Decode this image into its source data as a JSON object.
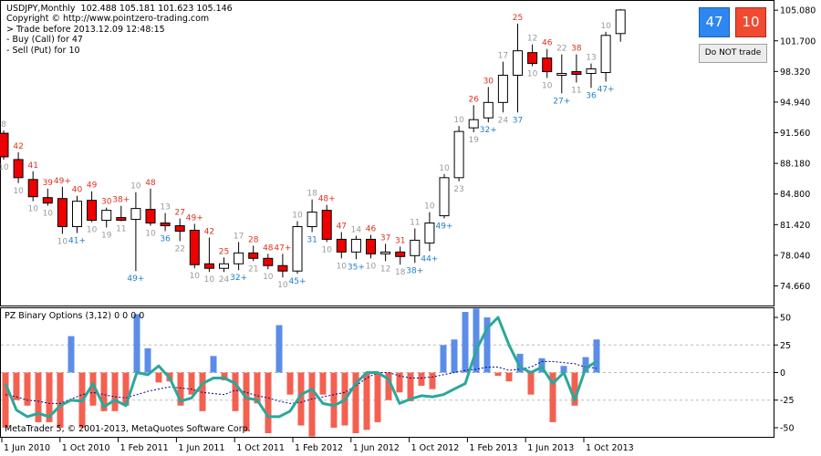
{
  "header": {
    "lines": [
      "USDJPY,Monthly  102.488 105.181 101.623 105.146",
      "Copyright © http://www.pointzero-trading.com",
      "> Trade before 2013.12.09 12:48:15",
      "- Buy (Call) for 47",
      "- Sell (Put) for 10"
    ]
  },
  "panel": {
    "call_count": "47",
    "put_count": "10",
    "trade_button": "Do NOT trade"
  },
  "indicator": {
    "title": "PZ Binary Options (3,12) 0 0 0 0"
  },
  "footer": {
    "text": "MetaTrader 5, © 2001-2013, MetaQuotes Software Corp."
  },
  "colors": {
    "bull_body": "#ffffff",
    "bear_body": "#ee0000",
    "call_label": "#1e7fc8",
    "put_label": "#e0301e",
    "neutral_label": "#9a9a9a",
    "hist_up": "#5b8de8",
    "hist_down": "#f46050",
    "osc_line": "#2aa89a",
    "signal_line": "#00008b"
  },
  "chart_data": [
    {
      "type": "candlestick",
      "symbol": "USDJPY",
      "timeframe": "Monthly",
      "ylim": [
        73.0,
        105.8
      ],
      "y_ticks": [
        "105.080",
        "101.700",
        "98.320",
        "94.940",
        "91.560",
        "88.180",
        "84.800",
        "81.420",
        "78.040",
        "74.660"
      ],
      "x_ticks": [
        "1 Jun 2010",
        "1 Oct 2010",
        "1 Feb 2011",
        "1 Jun 2011",
        "1 Oct 2011",
        "1 Feb 2012",
        "1 Jun 2012",
        "1 Oct 2012",
        "1 Feb 2013",
        "1 Jun 2013",
        "1 Oct 2013"
      ],
      "candles": [
        {
          "o": 91.5,
          "h": 91.8,
          "l": 88.6,
          "c": 88.9,
          "top": "8",
          "bottom": "10"
        },
        {
          "o": 88.6,
          "h": 89.4,
          "l": 86.0,
          "c": 86.6,
          "top": "42",
          "bottom": "10"
        },
        {
          "o": 86.4,
          "h": 87.3,
          "l": 84.0,
          "c": 84.5,
          "top": "41",
          "bottom": "10"
        },
        {
          "o": 84.4,
          "h": 85.4,
          "l": 83.5,
          "c": 83.8,
          "top": "39",
          "bottom": "10"
        },
        {
          "o": 84.3,
          "h": 85.6,
          "l": 80.4,
          "c": 81.2,
          "top": "49+",
          "bottom": "10"
        },
        {
          "o": 81.2,
          "h": 84.6,
          "l": 80.5,
          "c": 84.0,
          "top": "40",
          "bottom": "41+"
        },
        {
          "o": 84.1,
          "h": 85.1,
          "l": 81.7,
          "c": 81.9,
          "top": "49",
          "bottom": "10"
        },
        {
          "o": 81.9,
          "h": 83.3,
          "l": 81.1,
          "c": 83.0,
          "top": "30",
          "bottom": "19"
        },
        {
          "o": 82.2,
          "h": 83.5,
          "l": 81.8,
          "c": 81.9,
          "top": "38+",
          "bottom": "11"
        },
        {
          "o": 82.0,
          "h": 85.0,
          "l": 76.3,
          "c": 83.2,
          "top": "10",
          "bottom": "49+"
        },
        {
          "o": 83.1,
          "h": 85.4,
          "l": 81.3,
          "c": 81.6,
          "top": "48",
          "bottom": "10"
        },
        {
          "o": 81.6,
          "h": 82.7,
          "l": 80.7,
          "c": 81.3,
          "top": "13",
          "bottom": "36"
        },
        {
          "o": 81.3,
          "h": 82.1,
          "l": 79.6,
          "c": 80.7,
          "top": "27",
          "bottom": "22"
        },
        {
          "o": 80.8,
          "h": 81.5,
          "l": 76.6,
          "c": 77.0,
          "top": "49+",
          "bottom": "10"
        },
        {
          "o": 77.1,
          "h": 80.0,
          "l": 76.2,
          "c": 76.6,
          "top": "42",
          "bottom": "10"
        },
        {
          "o": 76.6,
          "h": 77.8,
          "l": 76.2,
          "c": 77.1,
          "top": "25",
          "bottom": "24"
        },
        {
          "o": 77.1,
          "h": 79.5,
          "l": 76.4,
          "c": 78.3,
          "top": "17",
          "bottom": "32+"
        },
        {
          "o": 78.3,
          "h": 79.1,
          "l": 77.4,
          "c": 77.7,
          "top": "28",
          "bottom": "21"
        },
        {
          "o": 77.7,
          "h": 78.2,
          "l": 76.5,
          "c": 76.9,
          "top": "48",
          "bottom": "10"
        },
        {
          "o": 76.9,
          "h": 78.2,
          "l": 75.6,
          "c": 76.3,
          "top": "47+",
          "bottom": "10"
        },
        {
          "o": 76.3,
          "h": 81.8,
          "l": 76.0,
          "c": 81.2,
          "top": "10",
          "bottom": "45+"
        },
        {
          "o": 81.2,
          "h": 84.2,
          "l": 80.6,
          "c": 82.8,
          "top": "18",
          "bottom": "31"
        },
        {
          "o": 83.0,
          "h": 83.6,
          "l": 79.5,
          "c": 79.8,
          "top": "48+",
          "bottom": "10"
        },
        {
          "o": 79.8,
          "h": 80.6,
          "l": 77.7,
          "c": 78.4,
          "top": "47",
          "bottom": "10"
        },
        {
          "o": 78.4,
          "h": 80.2,
          "l": 77.6,
          "c": 79.8,
          "top": "14",
          "bottom": "35+"
        },
        {
          "o": 79.8,
          "h": 80.3,
          "l": 77.7,
          "c": 78.2,
          "top": "46",
          "bottom": "10"
        },
        {
          "o": 78.2,
          "h": 79.3,
          "l": 77.4,
          "c": 78.4,
          "top": "37",
          "bottom": "12"
        },
        {
          "o": 78.4,
          "h": 79.0,
          "l": 77.0,
          "c": 77.9,
          "top": "31",
          "bottom": "18"
        },
        {
          "o": 78.0,
          "h": 81.0,
          "l": 77.2,
          "c": 79.7,
          "top": "11",
          "bottom": "38+"
        },
        {
          "o": 79.4,
          "h": 82.8,
          "l": 78.5,
          "c": 81.6,
          "top": "10",
          "bottom": "44+"
        },
        {
          "o": 82.4,
          "h": 87.0,
          "l": 82.1,
          "c": 86.6,
          "top": "10",
          "bottom": "49+"
        },
        {
          "o": 86.6,
          "h": 92.3,
          "l": 86.2,
          "c": 91.7,
          "top": "10",
          "bottom": "23"
        },
        {
          "o": 92.1,
          "h": 94.6,
          "l": 91.6,
          "c": 93.0,
          "top": "26",
          "bottom": "19"
        },
        {
          "o": 93.2,
          "h": 96.6,
          "l": 92.7,
          "c": 94.9,
          "top": "30",
          "bottom": "32+"
        },
        {
          "o": 94.9,
          "h": 99.4,
          "l": 93.8,
          "c": 97.9,
          "top": "17",
          "bottom": "24"
        },
        {
          "o": 97.9,
          "h": 103.6,
          "l": 93.8,
          "c": 100.6,
          "top": "25",
          "bottom": "37"
        },
        {
          "o": 100.4,
          "h": 101.3,
          "l": 98.9,
          "c": 99.2,
          "top": "12",
          "bottom": "10"
        },
        {
          "o": 99.8,
          "h": 100.8,
          "l": 97.6,
          "c": 98.3,
          "top": "46",
          "bottom": "10"
        },
        {
          "o": 97.9,
          "h": 100.2,
          "l": 95.9,
          "c": 98.1,
          "top": "22",
          "bottom": "27+"
        },
        {
          "o": 98.3,
          "h": 100.2,
          "l": 97.1,
          "c": 98.0,
          "top": "38",
          "bottom": "11"
        },
        {
          "o": 98.1,
          "h": 99.2,
          "l": 96.5,
          "c": 98.6,
          "top": "13",
          "bottom": "36"
        },
        {
          "o": 98.2,
          "h": 102.7,
          "l": 97.2,
          "c": 102.3,
          "top": "10",
          "bottom": "47+"
        },
        {
          "o": 102.5,
          "h": 105.2,
          "l": 101.6,
          "c": 105.1,
          "top": "",
          "bottom": ""
        }
      ]
    },
    {
      "type": "histogram+line",
      "title": "PZ Binary Options (3,12) 0 0 0 0",
      "ylim": [
        -55,
        55
      ],
      "y_ticks": [
        "50",
        "25",
        "0",
        "-25",
        "-50"
      ],
      "bars": [
        -50,
        -25,
        -30,
        -45,
        -45,
        -50,
        33,
        -50,
        -30,
        -35,
        -35,
        -30,
        53,
        22,
        -9,
        -8,
        -30,
        -20,
        -35,
        15,
        -7,
        -35,
        -53,
        -28,
        -55,
        43,
        -20,
        -48,
        -58,
        -20,
        -50,
        -48,
        -55,
        -52,
        -45,
        -25,
        -18,
        -26,
        -12,
        -15,
        25,
        30,
        55,
        58,
        50,
        -3,
        -8,
        17,
        -20,
        13,
        -45,
        6,
        -30,
        14,
        30
      ],
      "osc": [
        -10,
        -34,
        -40,
        -37,
        -40,
        -30,
        -25,
        -26,
        -10,
        -31,
        -25,
        -30,
        0,
        -2,
        6,
        -5,
        -26,
        -23,
        -10,
        -5,
        -5,
        -10,
        -23,
        -25,
        -40,
        -40,
        -35,
        -20,
        -15,
        -28,
        -30,
        -25,
        -10,
        0,
        0,
        -6,
        -28,
        -24,
        -21,
        -22,
        -20,
        -15,
        -10,
        20,
        40,
        50,
        25,
        5,
        0,
        5,
        -10,
        0,
        -25,
        4,
        10
      ],
      "signal": [
        -20,
        -22,
        -25,
        -26,
        -28,
        -28,
        -24,
        -20,
        -18,
        -20,
        -22,
        -23,
        -20,
        -17,
        -15,
        -13,
        -14,
        -15,
        -18,
        -19,
        -20,
        -16,
        -18,
        -21,
        -23,
        -26,
        -28,
        -27,
        -24,
        -22,
        -20,
        -18,
        -12,
        -5,
        0,
        0,
        -3,
        -5,
        -5,
        -4,
        -2,
        0,
        2,
        3,
        5,
        5,
        2,
        3,
        5,
        10,
        10,
        9,
        8,
        5,
        4
      ]
    }
  ]
}
